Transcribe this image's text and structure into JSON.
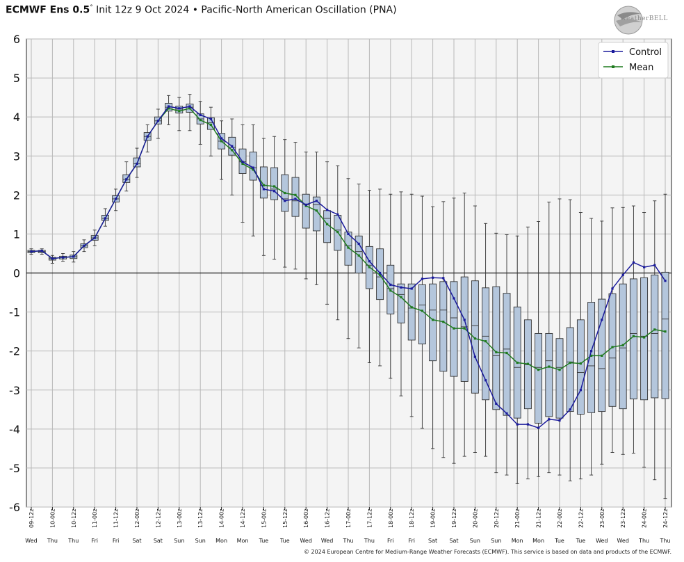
{
  "header": {
    "model": "ECMWF Ens 0.5",
    "degree": "°",
    "init": "Init 12z 9 Oct 2024",
    "sep": "•",
    "index": "Pacific-North American Oscillation (PNA)"
  },
  "logo": {
    "text": "WeatherBELL"
  },
  "footer": {
    "copyright": "© 2024 European Centre for Medium-Range Weather Forecasts (ECMWF). This service is based on data and products of the ECMWF."
  },
  "colors": {
    "control": "#1a1a9c",
    "mean": "#1f7a1f",
    "box_fill": "#b4c6dc",
    "box_edge": "#333333",
    "plot_bg": "#f4f4f4",
    "grid": "#b8b8b8"
  },
  "chart_data": {
    "type": "boxplot",
    "title": "ECMWF Ens 0.5° Init 12z 9 Oct 2024 • Pacific-North American Oscillation (PNA)",
    "ylim": [
      -6,
      6
    ],
    "yticks": [
      6,
      5,
      4,
      3,
      2,
      1,
      0,
      -1,
      -2,
      -3,
      -4,
      -5,
      -6
    ],
    "legend": {
      "position": "top-right",
      "entries": [
        "Control",
        "Mean"
      ]
    },
    "time_labels": [
      "09-12z",
      "10-00z",
      "10-12z",
      "11-00z",
      "11-12z",
      "12-00z",
      "12-12z",
      "13-00z",
      "13-12z",
      "14-00z",
      "14-12z",
      "15-00z",
      "15-12z",
      "16-00z",
      "16-12z",
      "17-00z",
      "17-12z",
      "18-00z",
      "18-12z",
      "19-00z",
      "19-12z",
      "20-00z",
      "20-12z",
      "21-00z",
      "21-12z",
      "22-00z",
      "22-12z",
      "23-00z",
      "23-12z",
      "24-00z",
      "24-12z"
    ],
    "day_labels": [
      "Wed",
      "Thu",
      "Thu",
      "Fri",
      "Fri",
      "Sat",
      "Sat",
      "Sun",
      "Sun",
      "Mon",
      "Mon",
      "Tue",
      "Tue",
      "Wed",
      "Wed",
      "Thu",
      "Thu",
      "Fri",
      "Fri",
      "Sat",
      "Sat",
      "Sun",
      "Sun",
      "Mon",
      "Mon",
      "Tue",
      "Tue",
      "Wed",
      "Wed",
      "Thu",
      "Thu"
    ],
    "series": [
      {
        "name": "Control",
        "values": [
          0.55,
          0.57,
          0.37,
          0.4,
          0.42,
          0.7,
          0.9,
          1.4,
          1.9,
          2.4,
          2.8,
          3.5,
          3.9,
          4.27,
          4.22,
          4.27,
          4.05,
          3.95,
          3.45,
          3.25,
          2.85,
          2.7,
          2.15,
          2.1,
          1.85,
          1.9,
          1.75,
          1.85,
          1.62,
          1.5,
          1.0,
          0.75,
          0.3,
          0.0,
          -0.3,
          -0.37,
          -0.4,
          -0.15,
          -0.12,
          -0.13,
          -0.65,
          -1.2,
          -2.15,
          -2.75,
          -3.35,
          -3.6,
          -3.88,
          -3.88,
          -3.97,
          -3.75,
          -3.78,
          -3.5,
          -3.0,
          -2.0,
          -1.2,
          -0.4,
          -0.05,
          0.27,
          0.15,
          0.2,
          -0.2
        ]
      },
      {
        "name": "Mean",
        "values": [
          0.55,
          0.57,
          0.37,
          0.4,
          0.42,
          0.7,
          0.9,
          1.4,
          1.9,
          2.4,
          2.8,
          3.5,
          3.9,
          4.22,
          4.15,
          4.22,
          3.92,
          3.8,
          3.38,
          3.15,
          2.8,
          2.65,
          2.25,
          2.22,
          2.05,
          2.0,
          1.72,
          1.6,
          1.25,
          1.05,
          0.65,
          0.45,
          0.15,
          -0.05,
          -0.45,
          -0.62,
          -0.88,
          -0.97,
          -1.2,
          -1.25,
          -1.42,
          -1.42,
          -1.68,
          -1.75,
          -2.03,
          -2.05,
          -2.3,
          -2.33,
          -2.48,
          -2.4,
          -2.48,
          -2.3,
          -2.32,
          -2.12,
          -2.12,
          -1.9,
          -1.85,
          -1.62,
          -1.65,
          -1.45,
          -1.5
        ]
      }
    ],
    "boxes": [
      [
        0.48,
        0.52,
        0.55,
        0.58,
        0.62
      ],
      [
        0.48,
        0.52,
        0.55,
        0.58,
        0.62
      ],
      [
        0.25,
        0.33,
        0.37,
        0.4,
        0.45
      ],
      [
        0.3,
        0.36,
        0.4,
        0.43,
        0.5
      ],
      [
        0.28,
        0.37,
        0.42,
        0.46,
        0.55
      ],
      [
        0.55,
        0.65,
        0.7,
        0.75,
        0.85
      ],
      [
        0.7,
        0.84,
        0.9,
        0.96,
        1.1
      ],
      [
        1.2,
        1.35,
        1.4,
        1.48,
        1.65
      ],
      [
        1.6,
        1.82,
        1.9,
        1.98,
        2.15
      ],
      [
        2.1,
        2.32,
        2.4,
        2.52,
        2.85
      ],
      [
        2.45,
        2.72,
        2.8,
        2.95,
        3.2
      ],
      [
        3.1,
        3.4,
        3.5,
        3.6,
        3.8
      ],
      [
        3.45,
        3.82,
        3.9,
        4.0,
        4.2
      ],
      [
        3.8,
        4.15,
        4.25,
        4.35,
        4.55
      ],
      [
        3.65,
        4.1,
        4.2,
        4.28,
        4.5
      ],
      [
        3.65,
        4.12,
        4.25,
        4.33,
        4.58
      ],
      [
        3.3,
        3.82,
        3.95,
        4.08,
        4.4
      ],
      [
        3.0,
        3.68,
        3.85,
        3.98,
        4.25
      ],
      [
        2.4,
        3.18,
        3.38,
        3.58,
        3.9
      ],
      [
        2.0,
        3.02,
        3.22,
        3.48,
        3.95
      ],
      [
        1.3,
        2.55,
        2.85,
        3.18,
        3.8
      ],
      [
        0.95,
        2.38,
        2.7,
        3.1,
        3.8
      ],
      [
        0.45,
        1.92,
        2.25,
        2.72,
        3.45
      ],
      [
        0.35,
        1.88,
        2.15,
        2.7,
        3.5
      ],
      [
        0.15,
        1.58,
        1.9,
        2.52,
        3.42
      ],
      [
        0.1,
        1.45,
        1.85,
        2.45,
        3.35
      ],
      [
        -0.15,
        1.15,
        1.75,
        2.02,
        3.1
      ],
      [
        -0.3,
        1.08,
        1.75,
        1.95,
        3.1
      ],
      [
        -0.8,
        0.78,
        1.4,
        1.6,
        2.85
      ],
      [
        -1.2,
        0.58,
        1.1,
        1.48,
        2.75
      ],
      [
        -1.68,
        0.2,
        0.7,
        1.05,
        2.42
      ],
      [
        -1.92,
        0.0,
        0.55,
        0.95,
        2.28
      ],
      [
        -2.3,
        -0.4,
        0.2,
        0.68,
        2.12
      ],
      [
        -2.38,
        -0.68,
        -0.1,
        0.62,
        2.15
      ],
      [
        -2.7,
        -1.05,
        -0.4,
        0.2,
        2.02
      ],
      [
        -3.15,
        -1.28,
        -0.55,
        -0.28,
        2.08
      ],
      [
        -3.68,
        -1.72,
        -0.9,
        -0.28,
        2.02
      ],
      [
        -3.98,
        -1.82,
        -0.82,
        -0.3,
        1.97
      ],
      [
        -4.5,
        -2.25,
        -0.95,
        -0.28,
        1.7
      ],
      [
        -4.73,
        -2.52,
        -0.95,
        -0.22,
        1.83
      ],
      [
        -4.88,
        -2.65,
        -1.15,
        -0.22,
        1.92
      ],
      [
        -4.7,
        -2.78,
        -1.38,
        -0.1,
        2.05
      ],
      [
        -4.6,
        -3.08,
        -1.35,
        -0.2,
        1.72
      ],
      [
        -4.7,
        -3.25,
        -1.62,
        -0.38,
        1.27
      ],
      [
        -5.12,
        -3.5,
        -2.12,
        -0.35,
        1.02
      ],
      [
        -5.18,
        -3.65,
        -1.95,
        -0.52,
        0.98
      ],
      [
        -5.4,
        -3.72,
        -2.42,
        -0.87,
        0.95
      ],
      [
        -5.28,
        -3.48,
        -2.35,
        -1.2,
        1.18
      ],
      [
        -5.22,
        -3.85,
        -2.42,
        -1.55,
        1.32
      ],
      [
        -5.12,
        -3.68,
        -2.25,
        -1.55,
        1.82
      ],
      [
        -5.18,
        -3.72,
        -2.42,
        -1.68,
        1.9
      ],
      [
        -5.33,
        -3.55,
        -2.28,
        -1.4,
        1.88
      ],
      [
        -5.28,
        -3.62,
        -2.55,
        -1.2,
        1.55
      ],
      [
        -5.18,
        -3.58,
        -2.38,
        -0.75,
        1.4
      ],
      [
        -4.9,
        -3.55,
        -2.45,
        -0.67,
        1.33
      ],
      [
        -4.6,
        -3.42,
        -2.18,
        -0.53,
        1.67
      ],
      [
        -4.65,
        -3.48,
        -1.92,
        -0.28,
        1.68
      ],
      [
        -4.62,
        -3.23,
        -1.55,
        -0.15,
        1.72
      ],
      [
        -4.98,
        -3.25,
        -1.62,
        -0.12,
        1.55
      ],
      [
        -5.3,
        -3.2,
        -1.55,
        -0.05,
        1.85
      ],
      [
        -5.78,
        -3.22,
        -1.18,
        0.02,
        2.02
      ]
    ]
  }
}
